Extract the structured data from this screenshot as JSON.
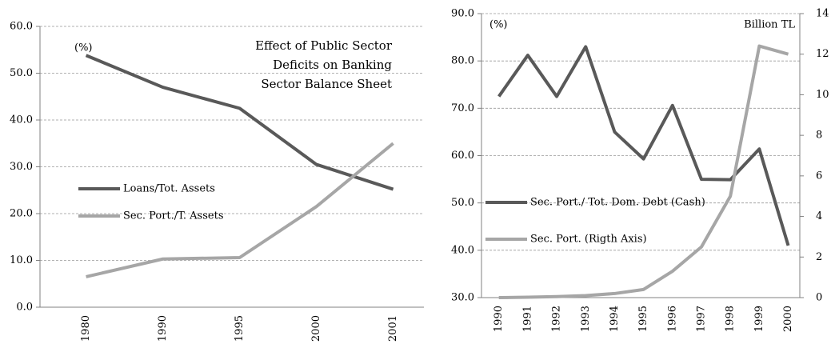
{
  "chart_data": [
    {
      "type": "line",
      "title_lines": [
        "Effect of Public  Sector",
        "Deficits on Banking",
        "Sector Balance Sheet"
      ],
      "unit_label": "(%)",
      "categories": [
        "1980",
        "1990",
        "1995",
        "2000",
        "2001"
      ],
      "series": [
        {
          "name": "Loans/Tot. Assets",
          "color": "#595959",
          "values": [
            53.8,
            47.0,
            42.5,
            30.5,
            25.2
          ]
        },
        {
          "name": "Sec. Port./T. Assets",
          "color": "#a6a6a6",
          "values": [
            6.5,
            10.3,
            10.6,
            21.5,
            35.0
          ]
        }
      ],
      "ylim": [
        0,
        60
      ],
      "yticks": [
        {
          "value": 0,
          "label": "0.0"
        },
        {
          "value": 10,
          "label": "10.0"
        },
        {
          "value": 20,
          "label": "20.0"
        },
        {
          "value": 30,
          "label": "30.0"
        },
        {
          "value": 40,
          "label": "40.0"
        },
        {
          "value": 50,
          "label": "50.0"
        },
        {
          "value": 60,
          "label": "60.0"
        }
      ],
      "grid": true
    },
    {
      "type": "line",
      "unit_label": "(%)",
      "y2_unit_label": "Billion TL",
      "categories": [
        "1990",
        "1991",
        "1992",
        "1993",
        "1994",
        "1995",
        "1996",
        "1997",
        "1998",
        "1999",
        "2000"
      ],
      "series": [
        {
          "name": "Sec. Port./ Tot. Dom. Debt (Cash)",
          "color": "#595959",
          "values": [
            72.5,
            81.2,
            72.5,
            83.0,
            65.0,
            59.3,
            70.6,
            55.0,
            54.9,
            61.4,
            41.0
          ]
        },
        {
          "name": "Sec. Port. (Rigth Axis)",
          "color": "#a6a6a6",
          "axis": "y2",
          "values": [
            0,
            0.02,
            0.05,
            0.1,
            0.2,
            0.4,
            1.3,
            2.5,
            5.0,
            12.4,
            12.0
          ]
        }
      ],
      "ylim": [
        30,
        90
      ],
      "yticks": [
        {
          "value": 30,
          "label": "30.0"
        },
        {
          "value": 40,
          "label": "40.0"
        },
        {
          "value": 50,
          "label": "50.0"
        },
        {
          "value": 60,
          "label": "60.0"
        },
        {
          "value": 70,
          "label": "70.0"
        },
        {
          "value": 80,
          "label": "80.0"
        },
        {
          "value": 90,
          "label": "90.0"
        }
      ],
      "y2lim": [
        0,
        14
      ],
      "y2ticks": [
        0,
        2,
        4,
        6,
        8,
        10,
        12,
        14
      ],
      "grid": true
    }
  ]
}
